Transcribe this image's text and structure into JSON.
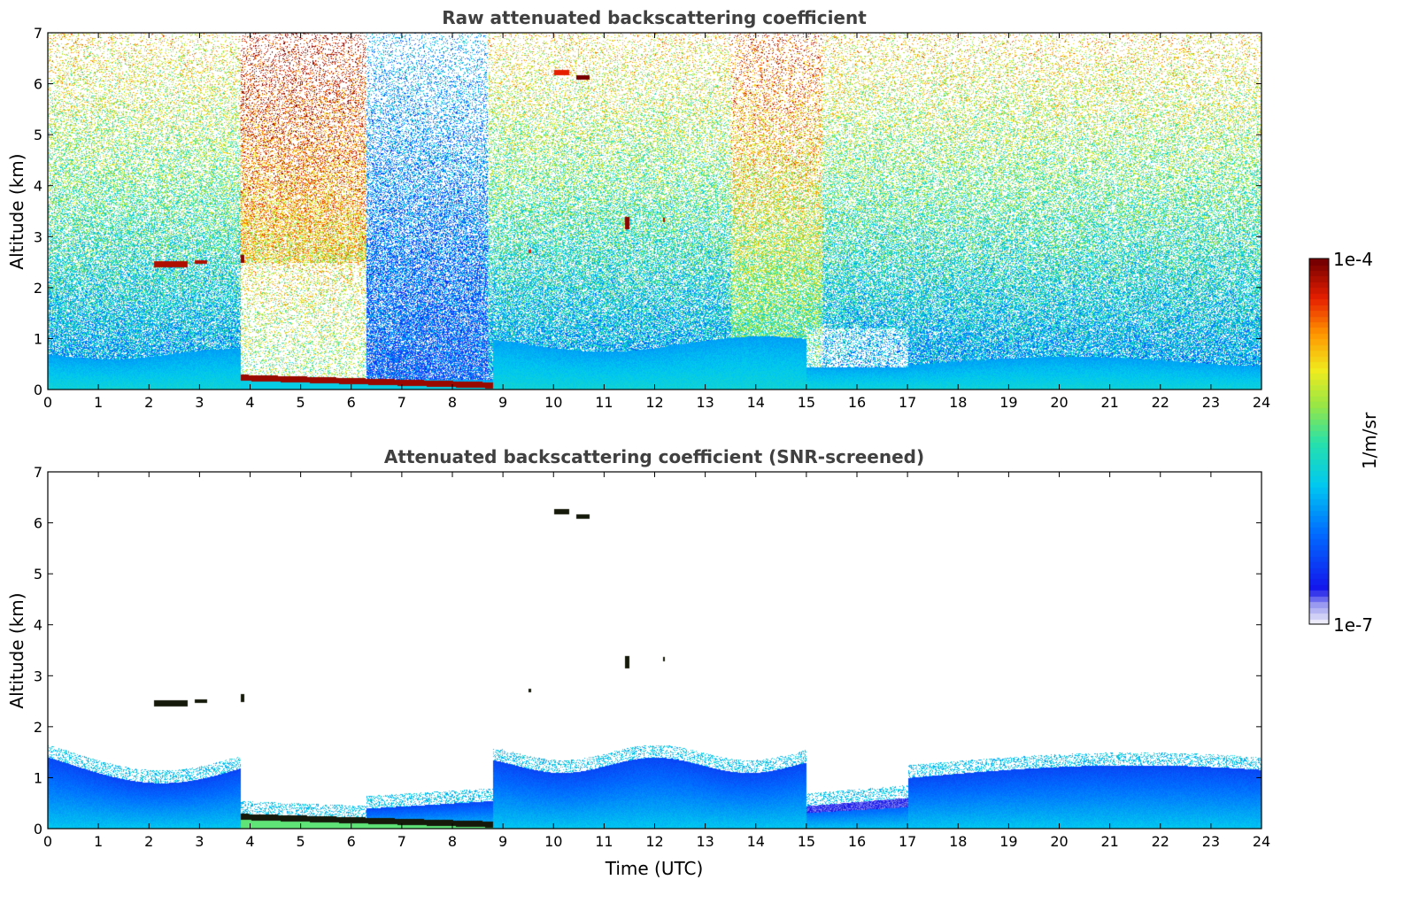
{
  "chart_data": [
    {
      "type": "heatmap",
      "title": "Raw attenuated backscattering coefficient",
      "xlabel": "",
      "ylabel": "Altitude (km)",
      "xlim": [
        0,
        24
      ],
      "ylim": [
        0,
        7
      ],
      "x_ticks": [
        "0",
        "1",
        "2",
        "3",
        "4",
        "5",
        "6",
        "7",
        "8",
        "9",
        "10",
        "11",
        "12",
        "13",
        "14",
        "15",
        "16",
        "17",
        "18",
        "19",
        "20",
        "21",
        "22",
        "23",
        "24"
      ],
      "y_ticks": [
        "0",
        "1",
        "2",
        "3",
        "4",
        "5",
        "6",
        "7"
      ],
      "field": "raw",
      "features": [
        {
          "name": "near-surface aerosol layer",
          "x": [
            0,
            24
          ],
          "y": [
            0,
            0.6
          ]
        },
        {
          "name": "high-signal surface layer",
          "x": [
            3.8,
            8.8
          ],
          "y": [
            0,
            0.3
          ]
        },
        {
          "name": "cloud",
          "x": [
            2.1,
            2.7
          ],
          "y": [
            2.4,
            2.55
          ]
        },
        {
          "name": "cloud",
          "x": [
            10.0,
            10.7
          ],
          "y": [
            6.1,
            6.25
          ]
        },
        {
          "name": "cloud",
          "x": [
            11.4,
            11.5
          ],
          "y": [
            3.1,
            3.4
          ]
        }
      ]
    },
    {
      "type": "heatmap",
      "title": "Attenuated backscattering coefficient (SNR-screened)",
      "xlabel": "Time (UTC)",
      "ylabel": "Altitude (km)",
      "xlim": [
        0,
        24
      ],
      "ylim": [
        0,
        7
      ],
      "x_ticks": [
        "0",
        "1",
        "2",
        "3",
        "4",
        "5",
        "6",
        "7",
        "8",
        "9",
        "10",
        "11",
        "12",
        "13",
        "14",
        "15",
        "16",
        "17",
        "18",
        "19",
        "20",
        "21",
        "22",
        "23",
        "24"
      ],
      "y_ticks": [
        "0",
        "1",
        "2",
        "3",
        "4",
        "5",
        "6",
        "7"
      ],
      "field": "screened",
      "features": [
        {
          "name": "boundary layer",
          "x": [
            0,
            3.8
          ],
          "y": [
            0,
            1.3
          ]
        },
        {
          "name": "boundary layer",
          "x": [
            8.8,
            15
          ],
          "y": [
            0,
            1.4
          ]
        },
        {
          "name": "boundary layer",
          "x": [
            15,
            24
          ],
          "y": [
            0,
            1.3
          ]
        },
        {
          "name": "cloud",
          "x": [
            2.1,
            2.7
          ],
          "y": [
            2.4,
            2.55
          ]
        },
        {
          "name": "cloud",
          "x": [
            10.0,
            10.7
          ],
          "y": [
            6.1,
            6.25
          ]
        }
      ]
    }
  ],
  "colorbar": {
    "max_label": "1e-4",
    "min_label": "1e-7",
    "unit": "1/m/sr",
    "scale": "log",
    "range": [
      1e-07,
      0.0001
    ]
  },
  "colors": {
    "title_color": "#404040",
    "missing": "#ffffff"
  }
}
